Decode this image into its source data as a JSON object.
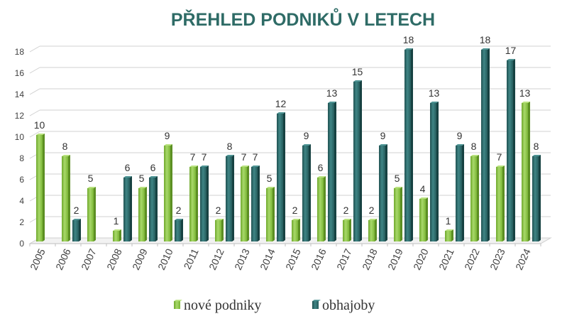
{
  "chart_data": {
    "type": "bar",
    "title": "PŘEHLED PODNIKŮ V LETECH",
    "xlabel": "",
    "ylabel": "",
    "ylim": [
      0,
      18
    ],
    "yticks": [
      0,
      2,
      4,
      6,
      8,
      10,
      12,
      14,
      16,
      18
    ],
    "grid": true,
    "legend": "bottom",
    "categories": [
      "2005",
      "2006",
      "2007",
      "2008",
      "2009",
      "2010",
      "2011",
      "2012",
      "2013",
      "2014",
      "2015",
      "2016",
      "2017",
      "2018",
      "2019",
      "2020",
      "2021",
      "2022",
      "2023",
      "2024"
    ],
    "series": [
      {
        "name": "nové podniky",
        "color": "#8cc63f",
        "values": [
          10,
          8,
          5,
          1,
          5,
          9,
          7,
          2,
          7,
          5,
          2,
          6,
          2,
          2,
          5,
          4,
          1,
          8,
          7,
          13
        ]
      },
      {
        "name": "obhajoby",
        "color": "#2e6b6b",
        "values": [
          null,
          2,
          null,
          6,
          6,
          2,
          7,
          8,
          7,
          12,
          9,
          13,
          15,
          9,
          18,
          13,
          9,
          18,
          17,
          8
        ]
      }
    ]
  }
}
